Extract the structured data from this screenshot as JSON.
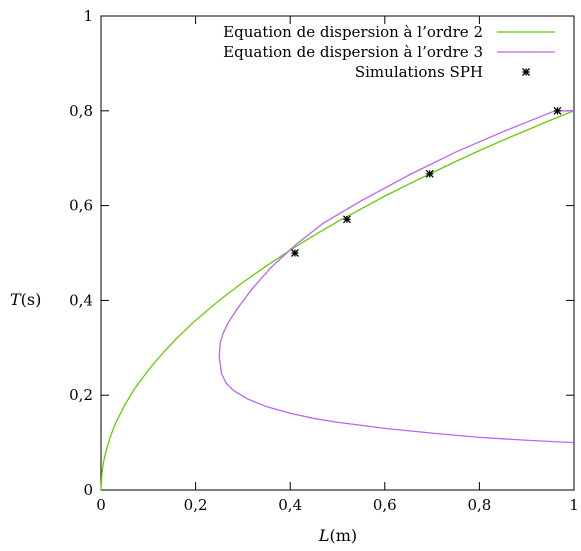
{
  "chart_data": {
    "type": "line",
    "xlabel_var": "L",
    "xlabel_unit": "(m)",
    "ylabel_var": "T",
    "ylabel_unit": "(s)",
    "xlim": [
      0,
      1
    ],
    "ylim": [
      0,
      1
    ],
    "xticks": [
      0,
      0.2,
      0.4,
      0.6,
      0.8,
      1
    ],
    "xtick_labels": [
      "0",
      "0,2",
      "0,4",
      "0,6",
      "0,8",
      "1"
    ],
    "yticks": [
      0,
      0.2,
      0.4,
      0.6,
      0.8,
      1
    ],
    "ytick_labels": [
      "0",
      "0,2",
      "0,4",
      "0,6",
      "0,8",
      "1"
    ],
    "grid": false,
    "legend_position": "top-right",
    "series": [
      {
        "name": "Equation de dispersion à l’ordre 2",
        "type": "line",
        "color": "#66cc00",
        "x": [
          0.0,
          0.002,
          0.005,
          0.01,
          0.02,
          0.03,
          0.05,
          0.07,
          0.1,
          0.13,
          0.16,
          0.2,
          0.25,
          0.3,
          0.35,
          0.4,
          0.45,
          0.5,
          0.55,
          0.6,
          0.65,
          0.7,
          0.75,
          0.8,
          0.85,
          0.9,
          0.95,
          1.0
        ],
        "y": [
          0.0,
          0.036,
          0.057,
          0.08,
          0.113,
          0.139,
          0.179,
          0.212,
          0.253,
          0.288,
          0.32,
          0.358,
          0.4,
          0.438,
          0.473,
          0.506,
          0.537,
          0.566,
          0.593,
          0.62,
          0.645,
          0.669,
          0.693,
          0.716,
          0.738,
          0.759,
          0.78,
          0.8
        ]
      },
      {
        "name": "Equation de dispersion à l’ordre 3",
        "type": "line",
        "color": "#bb66ee",
        "x": [
          1.0,
          0.9,
          0.8,
          0.7,
          0.6,
          0.5,
          0.45,
          0.4,
          0.35,
          0.31,
          0.28,
          0.265,
          0.255,
          0.25,
          0.252,
          0.258,
          0.27,
          0.29,
          0.32,
          0.36,
          0.41,
          0.47,
          0.55,
          0.65,
          0.75,
          0.85,
          0.96,
          1.0
        ],
        "y": [
          0.1,
          0.105,
          0.111,
          0.12,
          0.13,
          0.143,
          0.151,
          0.162,
          0.176,
          0.192,
          0.21,
          0.225,
          0.245,
          0.28,
          0.31,
          0.33,
          0.355,
          0.385,
          0.425,
          0.47,
          0.516,
          0.563,
          0.61,
          0.664,
          0.713,
          0.756,
          0.8,
          0.8
        ]
      },
      {
        "name": "Simulations SPH",
        "type": "scatter",
        "color": "#000000",
        "x": [
          0.41,
          0.52,
          0.695,
          0.965
        ],
        "y": [
          0.5,
          0.571,
          0.667,
          0.8
        ]
      }
    ]
  }
}
